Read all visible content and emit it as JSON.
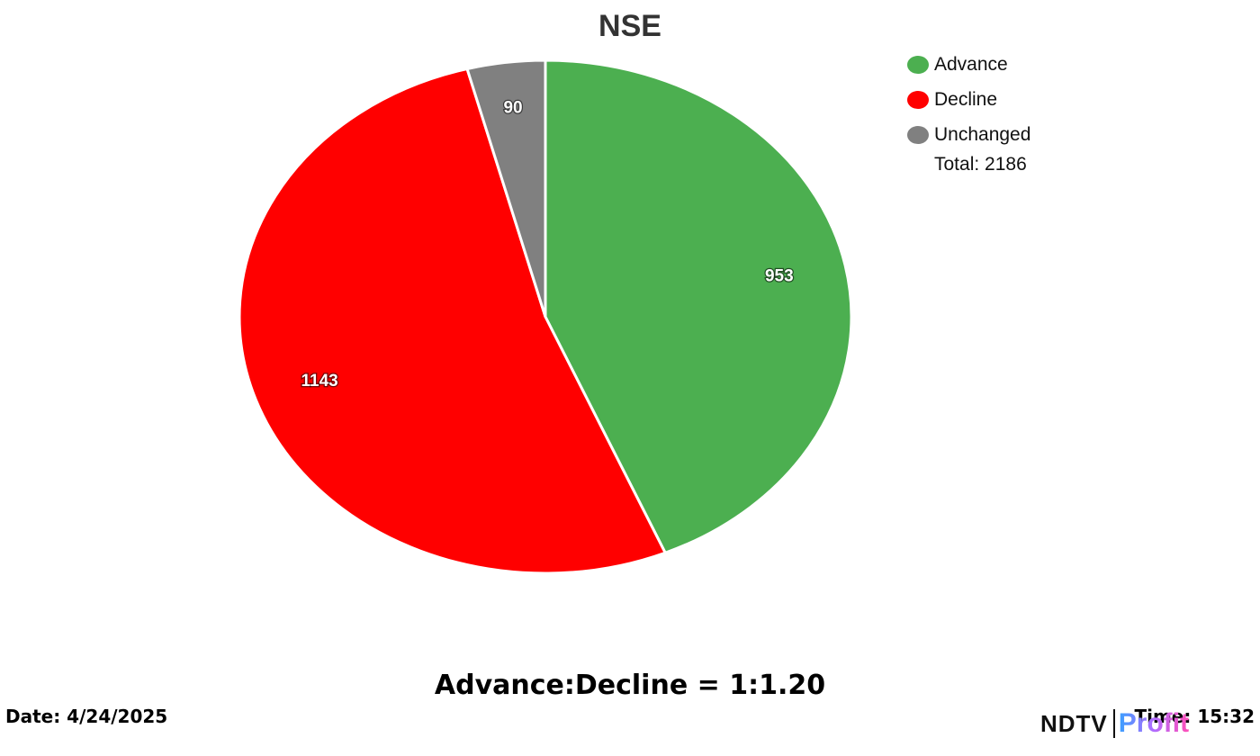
{
  "chart_data": {
    "type": "pie",
    "title": "NSE",
    "slices": [
      {
        "name": "Advance",
        "value": 953,
        "color": "#4caf50"
      },
      {
        "name": "Decline",
        "value": 1143,
        "color": "#ff0000"
      },
      {
        "name": "Unchanged",
        "value": 90,
        "color": "#808080"
      }
    ],
    "legend_placement": "top-right",
    "legend_total": "Total: 2186"
  },
  "ratio_text": "Advance:Decline = 1:1.20",
  "date_text": "Date: 4/24/2025",
  "time_text": "Time: 15:32",
  "logo": {
    "part1": "NDTV",
    "part2": "Profit"
  }
}
